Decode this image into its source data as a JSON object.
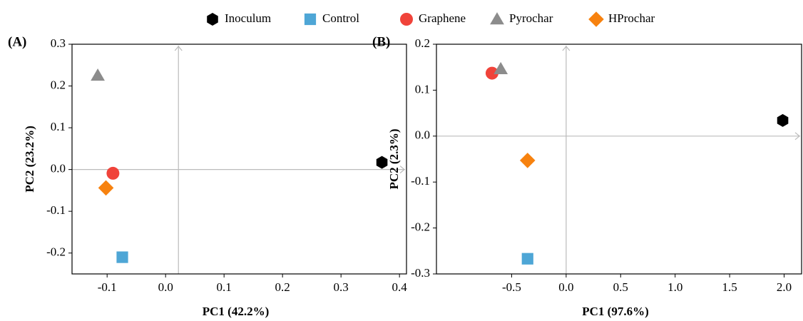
{
  "chart_data": [
    {
      "type": "scatter",
      "label": "(A)",
      "x_label": "PC1 (42.2%)",
      "y_label": "PC2 (23.2%)",
      "xlim": [
        -0.16,
        0.412
      ],
      "ylim": [
        -0.25,
        0.3
      ],
      "xticks": [
        -0.1,
        {
          "value": 0,
          "label": "0.0"
        },
        0.1,
        0.2,
        0.3,
        0.4
      ],
      "yticks": [
        -0.2,
        -0.1,
        {
          "value": 0,
          "label": "0.0"
        },
        0.1,
        0.2,
        0.3
      ],
      "ref_lines": {
        "x": 0.022,
        "y": 0
      },
      "series": [
        {
          "name": "Inoculum",
          "color": "#000000",
          "marker": "hexagon",
          "x": [
            0.37
          ],
          "values": [
            0.017
          ]
        },
        {
          "name": "Control",
          "color": "#4ea6d6",
          "marker": "square",
          "x": [
            -0.074
          ],
          "values": [
            -0.21
          ]
        },
        {
          "name": "Graphene",
          "color": "#f0433a",
          "marker": "circle",
          "x": [
            -0.09
          ],
          "values": [
            -0.009
          ]
        },
        {
          "name": "Pyrochar",
          "color": "#8c8c8c",
          "marker": "triangle",
          "x": [
            -0.116
          ],
          "values": [
            0.225
          ]
        },
        {
          "name": "HProchar",
          "color": "#f7820f",
          "marker": "diamond",
          "x": [
            -0.102
          ],
          "values": [
            -0.044
          ]
        }
      ]
    },
    {
      "type": "scatter",
      "label": "(B)",
      "x_label": "PC1 (97.6%)",
      "y_label": "PC2 (2.3%)",
      "xlim": [
        -1.19,
        2.16
      ],
      "ylim": [
        -0.3,
        0.2
      ],
      "xticks": [
        -0.5,
        {
          "value": 0,
          "label": "0.0"
        },
        0.5,
        {
          "value": 1,
          "label": "1.0"
        },
        1.5,
        {
          "value": 2,
          "label": "2.0"
        }
      ],
      "yticks": [
        -0.3,
        -0.2,
        -0.1,
        {
          "value": 0,
          "label": "0.0"
        },
        0.1,
        0.2
      ],
      "ref_lines": {
        "x": 0,
        "y": 0
      },
      "series": [
        {
          "color": "#000000",
          "marker": "hexagon",
          "x": [
            1.987
          ],
          "values": [
            0.034
          ]
        },
        {
          "color": "#4ea6d6",
          "marker": "square",
          "x": [
            -0.354
          ],
          "values": [
            -0.267
          ]
        },
        {
          "color": "#f0433a",
          "marker": "circle",
          "x": [
            -0.68
          ],
          "values": [
            0.137
          ]
        },
        {
          "color": "#8c8c8c",
          "marker": "triangle",
          "x": [
            -0.6
          ],
          "values": [
            0.146
          ]
        },
        {
          "color": "#f7820f",
          "marker": "diamond",
          "x": [
            -0.354
          ],
          "values": [
            -0.053
          ]
        }
      ]
    }
  ]
}
